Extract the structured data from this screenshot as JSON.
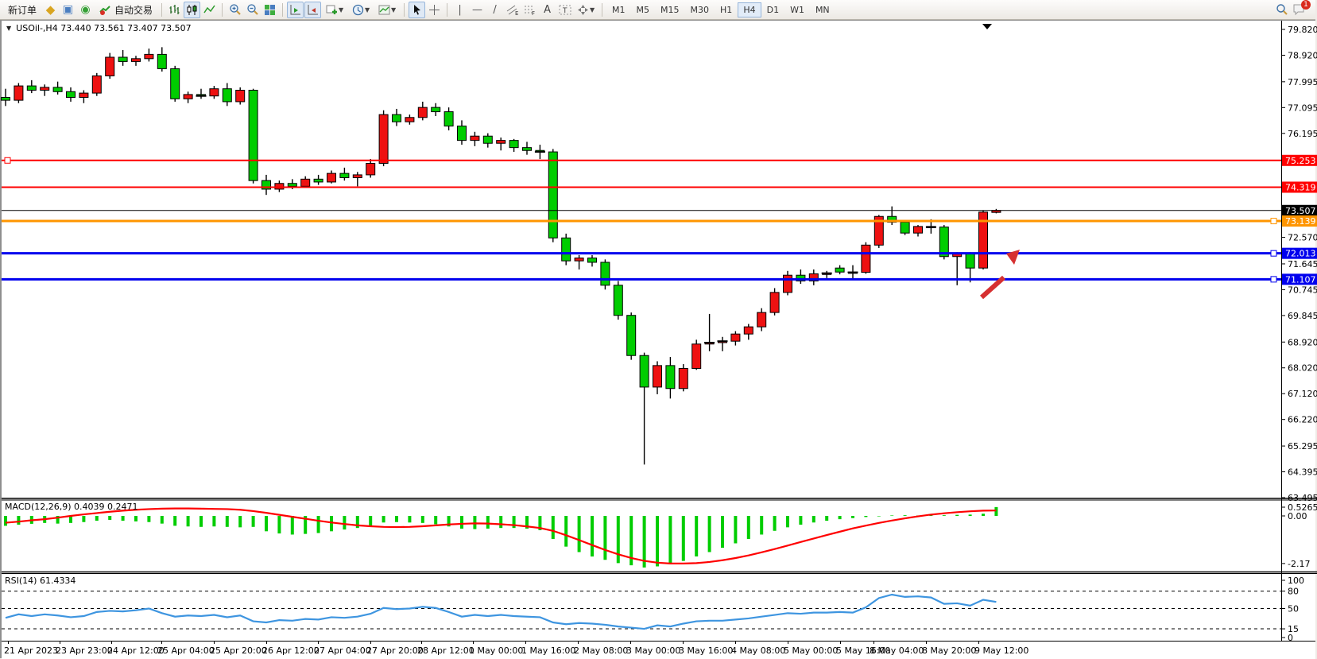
{
  "toolbar": {
    "new_order": "新订单",
    "autotrading": "自动交易",
    "timeframes": [
      "M1",
      "M5",
      "M15",
      "M30",
      "H1",
      "H4",
      "D1",
      "W1",
      "MN"
    ],
    "active_timeframe": "H4",
    "chat_badge": "1",
    "icons": [
      "market-watch-icon",
      "navigator-icon",
      "signals-icon",
      "autotrading-icon",
      "bar-chart-icon",
      "candlestick-chart-icon",
      "line-chart-icon",
      "zoom-in-icon",
      "zoom-out-icon",
      "tile-windows-icon",
      "auto-scroll-icon",
      "chart-shift-icon",
      "add-indicator-icon",
      "periods-icon",
      "templates-icon",
      "cursor-icon",
      "crosshair-icon",
      "vertical-line-icon",
      "horizontal-line-icon",
      "trendline-icon",
      "channel-icon",
      "fibonacci-icon",
      "text-icon",
      "label-icon",
      "arrows-icon",
      "search-icon",
      "chat-icon"
    ]
  },
  "chart_header": {
    "collapse_icon": "▼",
    "title": "USOil-,H4 73.440 73.561 73.407 73.507"
  },
  "chart_data": [
    {
      "type": "candlestick",
      "symbol": "USOil-",
      "timeframe": "H4",
      "ohlc_current": {
        "open": "73.440",
        "high": "73.561",
        "low": "73.407",
        "close": "73.507"
      },
      "up_color": "#ee1111",
      "down_color": "#00cd00",
      "ylim": [
        63.3,
        79.9
      ],
      "y_ticks": [
        "79.820",
        "78.920",
        "77.995",
        "77.095",
        "76.195",
        "72.570",
        "71.645",
        "70.745",
        "69.845",
        "68.920",
        "68.020",
        "67.120",
        "66.220",
        "65.295",
        "64.395",
        "63.495"
      ],
      "hlines": [
        {
          "price": 75.253,
          "label": "75.253",
          "color": "#ff0000",
          "width": 2,
          "handle": "left"
        },
        {
          "price": 74.319,
          "label": "74.319",
          "color": "#ff0000",
          "width": 2,
          "handle": "none"
        },
        {
          "price": 73.507,
          "label": "73.507",
          "color": "#000000",
          "width": 1,
          "handle": "none",
          "role": "current-price"
        },
        {
          "price": 73.139,
          "label": "73.139",
          "color": "#ff9500",
          "width": 3,
          "handle": "right"
        },
        {
          "price": 72.013,
          "label": "72.013",
          "color": "#0000ee",
          "width": 3,
          "handle": "right"
        },
        {
          "price": 71.107,
          "label": "71.107",
          "color": "#0000ee",
          "width": 3,
          "handle": "right"
        }
      ],
      "arrow_annotation": {
        "x1": 1233,
        "y1": 348,
        "x2": 1281,
        "y2": 288,
        "color": "#d63031"
      },
      "candles": [
        [
          77.45,
          77.75,
          77.15,
          77.35
        ],
        [
          77.35,
          77.95,
          77.25,
          77.85
        ],
        [
          77.85,
          78.05,
          77.6,
          77.7
        ],
        [
          77.7,
          77.9,
          77.5,
          77.8
        ],
        [
          77.8,
          78.0,
          77.55,
          77.65
        ],
        [
          77.65,
          77.8,
          77.3,
          77.45
        ],
        [
          77.45,
          77.7,
          77.25,
          77.6
        ],
        [
          77.6,
          78.3,
          77.5,
          78.2
        ],
        [
          78.2,
          79.0,
          78.1,
          78.85
        ],
        [
          78.85,
          79.1,
          78.55,
          78.7
        ],
        [
          78.7,
          78.9,
          78.55,
          78.8
        ],
        [
          78.8,
          79.15,
          78.7,
          78.95
        ],
        [
          78.95,
          79.2,
          78.35,
          78.45
        ],
        [
          78.45,
          78.55,
          77.3,
          77.4
        ],
        [
          77.4,
          77.65,
          77.25,
          77.55
        ],
        [
          77.55,
          77.75,
          77.4,
          77.5
        ],
        [
          77.5,
          77.85,
          77.4,
          77.75
        ],
        [
          77.75,
          77.95,
          77.15,
          77.3
        ],
        [
          77.3,
          77.8,
          77.2,
          77.7
        ],
        [
          77.7,
          77.75,
          74.45,
          74.55
        ],
        [
          74.55,
          74.75,
          74.05,
          74.25
        ],
        [
          74.25,
          74.55,
          74.15,
          74.45
        ],
        [
          74.45,
          74.6,
          74.25,
          74.35
        ],
        [
          74.35,
          74.7,
          74.3,
          74.6
        ],
        [
          74.6,
          74.75,
          74.4,
          74.5
        ],
        [
          74.5,
          74.9,
          74.45,
          74.8
        ],
        [
          74.8,
          75.0,
          74.55,
          74.65
        ],
        [
          74.65,
          74.85,
          74.35,
          74.75
        ],
        [
          74.75,
          75.3,
          74.65,
          75.15
        ],
        [
          75.15,
          77.0,
          75.05,
          76.85
        ],
        [
          76.85,
          77.05,
          76.45,
          76.6
        ],
        [
          76.6,
          76.85,
          76.5,
          76.75
        ],
        [
          76.75,
          77.3,
          76.65,
          77.1
        ],
        [
          77.1,
          77.25,
          76.8,
          76.95
        ],
        [
          76.95,
          77.1,
          76.3,
          76.45
        ],
        [
          76.45,
          76.65,
          75.8,
          75.95
        ],
        [
          75.95,
          76.25,
          75.75,
          76.1
        ],
        [
          76.1,
          76.2,
          75.7,
          75.85
        ],
        [
          75.85,
          76.05,
          75.6,
          75.95
        ],
        [
          75.95,
          76.0,
          75.55,
          75.7
        ],
        [
          75.7,
          75.9,
          75.45,
          75.6
        ],
        [
          75.6,
          75.8,
          75.3,
          75.55
        ],
        [
          75.55,
          75.65,
          72.4,
          72.55
        ],
        [
          72.55,
          72.7,
          71.6,
          71.75
        ],
        [
          71.75,
          71.95,
          71.45,
          71.85
        ],
        [
          71.85,
          71.95,
          71.55,
          71.7
        ],
        [
          71.7,
          71.8,
          70.75,
          70.9
        ],
        [
          70.9,
          71.05,
          69.7,
          69.85
        ],
        [
          69.85,
          69.95,
          68.3,
          68.45
        ],
        [
          68.45,
          68.55,
          64.65,
          67.35
        ],
        [
          67.35,
          68.25,
          67.1,
          68.1
        ],
        [
          68.1,
          68.4,
          66.95,
          67.3
        ],
        [
          67.3,
          68.15,
          67.2,
          68.0
        ],
        [
          68.0,
          69.0,
          67.95,
          68.85
        ],
        [
          68.85,
          69.9,
          68.6,
          68.9
        ],
        [
          68.9,
          69.1,
          68.6,
          68.95
        ],
        [
          68.95,
          69.3,
          68.8,
          69.2
        ],
        [
          69.2,
          69.55,
          69.0,
          69.45
        ],
        [
          69.45,
          70.1,
          69.3,
          69.95
        ],
        [
          69.95,
          70.8,
          69.85,
          70.65
        ],
        [
          70.65,
          71.4,
          70.55,
          71.25
        ],
        [
          71.25,
          71.45,
          70.95,
          71.05
        ],
        [
          71.05,
          71.45,
          70.9,
          71.3
        ],
        [
          71.3,
          71.4,
          71.15,
          71.32
        ],
        [
          71.5,
          71.6,
          71.28,
          71.36
        ],
        [
          71.36,
          71.6,
          71.1,
          71.35
        ],
        [
          71.35,
          72.4,
          71.3,
          72.3
        ],
        [
          72.3,
          73.35,
          72.2,
          73.3
        ],
        [
          73.3,
          73.65,
          73.0,
          73.1
        ],
        [
          73.1,
          73.15,
          72.65,
          72.72
        ],
        [
          72.72,
          73.0,
          72.6,
          72.95
        ],
        [
          72.95,
          73.2,
          72.7,
          72.93
        ],
        [
          72.93,
          73.0,
          71.8,
          71.9
        ],
        [
          71.9,
          72.05,
          70.9,
          72.0
        ],
        [
          72.0,
          72.05,
          71.0,
          71.5
        ],
        [
          71.5,
          73.5,
          71.45,
          73.45
        ],
        [
          73.44,
          73.561,
          73.407,
          73.507
        ]
      ]
    },
    {
      "type": "macd",
      "label": "MACD(12,26,9) 0.4039 0.2471",
      "macd_value": 0.4039,
      "signal_value": 0.2471,
      "y_ticks": [
        "0.5265",
        "0.00",
        "-2.17"
      ],
      "histogram_color": "#00cd00",
      "signal_color": "#ff0000",
      "histogram": [
        -0.45,
        -0.4,
        -0.36,
        -0.32,
        -0.35,
        -0.32,
        -0.28,
        -0.22,
        -0.18,
        -0.22,
        -0.25,
        -0.28,
        -0.35,
        -0.45,
        -0.48,
        -0.5,
        -0.48,
        -0.5,
        -0.52,
        -0.5,
        -0.7,
        -0.8,
        -0.85,
        -0.82,
        -0.78,
        -0.7,
        -0.62,
        -0.55,
        -0.45,
        -0.3,
        -0.28,
        -0.3,
        -0.32,
        -0.38,
        -0.48,
        -0.58,
        -0.6,
        -0.58,
        -0.55,
        -0.55,
        -0.58,
        -0.65,
        -1.05,
        -1.4,
        -1.65,
        -1.85,
        -2.0,
        -2.15,
        -2.25,
        -2.35,
        -2.3,
        -2.2,
        -2.05,
        -1.85,
        -1.65,
        -1.45,
        -1.25,
        -1.05,
        -0.85,
        -0.68,
        -0.52,
        -0.4,
        -0.3,
        -0.22,
        -0.15,
        -0.1,
        -0.05,
        -0.02,
        0.02,
        0.03,
        0.02,
        0.02,
        0.03,
        0.05,
        0.06,
        0.1,
        0.4039
      ],
      "signal": [
        -0.31,
        -0.26,
        -0.2,
        -0.15,
        -0.08,
        0.0,
        0.07,
        0.13,
        0.19,
        0.24,
        0.28,
        0.31,
        0.33,
        0.34,
        0.34,
        0.33,
        0.32,
        0.31,
        0.28,
        0.22,
        0.14,
        0.05,
        -0.04,
        -0.13,
        -0.22,
        -0.3,
        -0.37,
        -0.43,
        -0.47,
        -0.5,
        -0.51,
        -0.5,
        -0.47,
        -0.43,
        -0.39,
        -0.36,
        -0.34,
        -0.35,
        -0.38,
        -0.42,
        -0.48,
        -0.55,
        -0.68,
        -0.88,
        -1.1,
        -1.33,
        -1.55,
        -1.75,
        -1.92,
        -2.05,
        -2.13,
        -2.17,
        -2.17,
        -2.15,
        -2.1,
        -2.02,
        -1.92,
        -1.8,
        -1.66,
        -1.51,
        -1.35,
        -1.19,
        -1.03,
        -0.87,
        -0.72,
        -0.57,
        -0.44,
        -0.32,
        -0.21,
        -0.11,
        -0.02,
        0.06,
        0.12,
        0.17,
        0.21,
        0.24,
        0.2471
      ]
    },
    {
      "type": "rsi",
      "label": "RSI(14) 61.4334",
      "value": 61.4334,
      "levels": [
        80,
        50,
        15
      ],
      "y_ticks": [
        "100",
        "80",
        "50",
        "15",
        "0"
      ],
      "line_color": "#3e95e0",
      "values": [
        34,
        40,
        37,
        40,
        38,
        35,
        37,
        44,
        46,
        45,
        47,
        50,
        42,
        36,
        38,
        37,
        39,
        35,
        38,
        28,
        26,
        30,
        29,
        32,
        31,
        35,
        34,
        36,
        41,
        51,
        49,
        50,
        53,
        51,
        44,
        36,
        39,
        37,
        39,
        37,
        36,
        35,
        26,
        23,
        25,
        24,
        22,
        19,
        17,
        15,
        21,
        19,
        24,
        28,
        29,
        29,
        31,
        33,
        36,
        39,
        42,
        41,
        43,
        43,
        44,
        43,
        52,
        68,
        74,
        70,
        71,
        69,
        58,
        59,
        55,
        65,
        61.4334
      ]
    }
  ],
  "time_axis": {
    "labels": [
      {
        "t": "21 Apr 2023",
        "x": 3
      },
      {
        "t": "23 Apr 23:00",
        "x": 68
      },
      {
        "t": "24 Apr 12:00",
        "x": 133
      },
      {
        "t": "25 Apr 04:00",
        "x": 196
      },
      {
        "t": "25 Apr 20:00",
        "x": 262
      },
      {
        "t": "26 Apr 12:00",
        "x": 328
      },
      {
        "t": "27 Apr 04:00",
        "x": 393
      },
      {
        "t": "27 Apr 20:00",
        "x": 459
      },
      {
        "t": "28 Apr 12:00",
        "x": 523
      },
      {
        "t": "1 May 00:00",
        "x": 588
      },
      {
        "t": "1 May 16:00",
        "x": 654
      },
      {
        "t": "2 May 08:00",
        "x": 720
      },
      {
        "t": "3 May 00:00",
        "x": 786
      },
      {
        "t": "3 May 16:00",
        "x": 852
      },
      {
        "t": "4 May 08:00",
        "x": 918
      },
      {
        "t": "5 May 00:00",
        "x": 984
      },
      {
        "t": "5 May 16:00",
        "x": 1050
      },
      {
        "t": "8 May 04:00",
        "x": 1092
      },
      {
        "t": "8 May 20:00",
        "x": 1158
      },
      {
        "t": "9 May 12:00",
        "x": 1224
      }
    ]
  }
}
